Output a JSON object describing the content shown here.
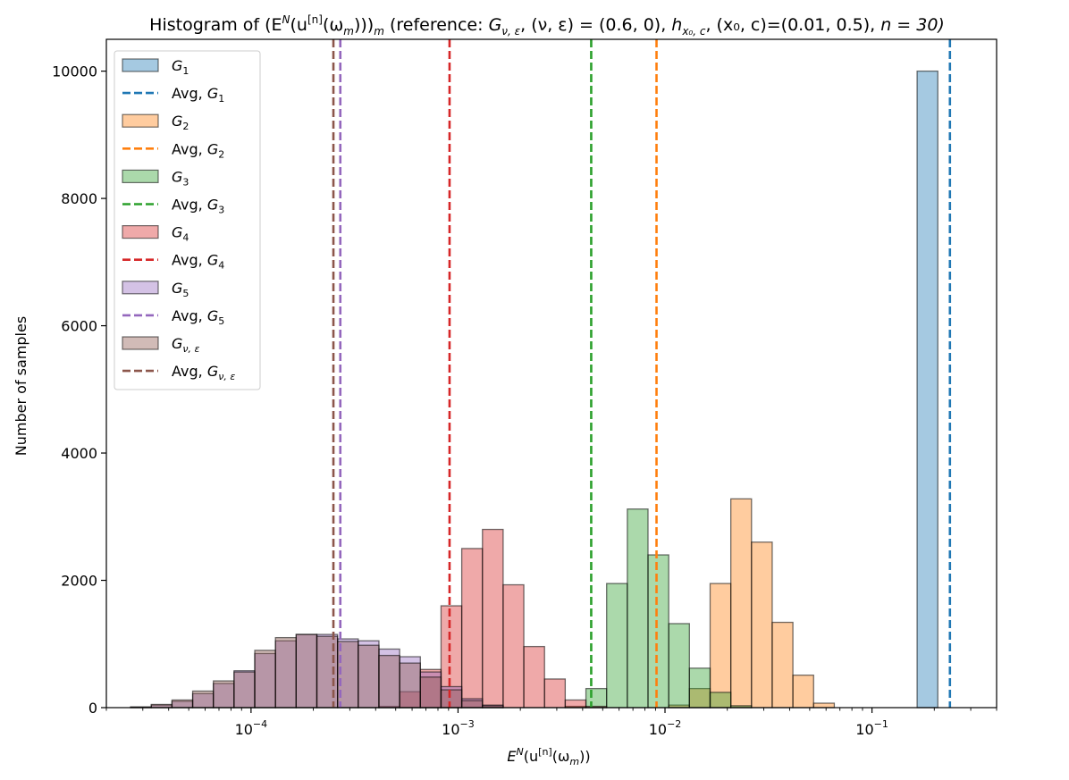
{
  "chart_data": {
    "type": "histogram",
    "title": "Histogram of (E^N(u^[n](ω_m)))_m (reference: G_{ν,ε}, (ν,ε)= (0.6, 0), h_{x₀,c}, (x₀,c)=(0.01, 0.5), n=30)",
    "title_parts": {
      "lead": "Histogram of (E",
      "sup_N": "N",
      "open": "(u",
      "sup_n": "[n]",
      "omega": "(ω",
      "sub_m1": "m",
      "close": ")))",
      "sub_m2": "m",
      "ref": " (reference: ",
      "G": "G",
      "sub_nueps": "ν, ε",
      "mid": ", (ν, ε) =  (0.6, 0), ",
      "h": "h",
      "sub_x0c": "x₀, c",
      "tail": ", (x₀, c)=(0.01, 0.5), ",
      "n_eq": "n = 30)"
    },
    "xlabel": "E^N(u^[n](ω_m))",
    "xlabel_parts": {
      "E": "E",
      "sup_N": "N",
      "open": "(u",
      "sup_n": "[n]",
      "omega": "(ω",
      "sub_m": "m",
      "close": "))"
    },
    "ylabel": "Number of samples",
    "xscale": "log",
    "xlim": [
      2e-05,
      0.4
    ],
    "ylim": [
      0,
      10500
    ],
    "xticks": [
      {
        "value": 0.0001,
        "base": "10",
        "exp": "−4"
      },
      {
        "value": 0.001,
        "base": "10",
        "exp": "−3"
      },
      {
        "value": 0.01,
        "base": "10",
        "exp": "−2"
      },
      {
        "value": 0.1,
        "base": "10",
        "exp": "−1"
      }
    ],
    "yticks": [
      {
        "value": 0,
        "label": "0"
      },
      {
        "value": 2000,
        "label": "2000"
      },
      {
        "value": 4000,
        "label": "4000"
      },
      {
        "value": 6000,
        "label": "6000"
      },
      {
        "value": 8000,
        "label": "8000"
      },
      {
        "value": 10000,
        "label": "10000"
      }
    ],
    "bin_edges_log10": [
      -4.582,
      -4.482,
      -4.382,
      -4.282,
      -4.182,
      -4.082,
      -3.982,
      -3.882,
      -3.782,
      -3.682,
      -3.582,
      -3.482,
      -3.382,
      -3.282,
      -3.182,
      -3.082,
      -2.982,
      -2.882,
      -2.782,
      -2.682,
      -2.582,
      -2.482,
      -2.382,
      -2.282,
      -2.182,
      -2.082,
      -1.982,
      -1.882,
      -1.782,
      -1.682,
      -1.582,
      -1.482,
      -1.382,
      -1.282,
      -1.182,
      -1.082,
      -0.982,
      -0.882,
      -0.782,
      -0.682,
      -0.582
    ],
    "legend_position": "upper-left",
    "series": [
      {
        "name": "G1",
        "base": "G",
        "sub": "1",
        "avg_label": "Avg, ",
        "color": "#1f77b4",
        "average": 0.238,
        "counts": [
          0,
          0,
          0,
          0,
          0,
          0,
          0,
          0,
          0,
          0,
          0,
          0,
          0,
          0,
          0,
          0,
          0,
          0,
          0,
          0,
          0,
          0,
          0,
          0,
          0,
          0,
          0,
          0,
          0,
          0,
          0,
          0,
          0,
          0,
          0,
          0,
          0,
          0,
          10000,
          0
        ]
      },
      {
        "name": "G2",
        "base": "G",
        "sub": "2",
        "avg_label": "Avg, ",
        "color": "#ff7f0e",
        "average": 0.0091,
        "counts": [
          0,
          0,
          0,
          0,
          0,
          0,
          0,
          0,
          0,
          0,
          0,
          0,
          0,
          0,
          0,
          0,
          0,
          0,
          0,
          0,
          0,
          0,
          0,
          0,
          0,
          0,
          40,
          300,
          1950,
          3280,
          2600,
          1340,
          510,
          70,
          0,
          0,
          0,
          0,
          0,
          0
        ]
      },
      {
        "name": "G3",
        "base": "G",
        "sub": "3",
        "avg_label": "Avg, ",
        "color": "#2ca02c",
        "average": 0.0044,
        "counts": [
          0,
          0,
          0,
          0,
          0,
          0,
          0,
          0,
          0,
          0,
          0,
          0,
          0,
          0,
          0,
          0,
          0,
          0,
          0,
          0,
          0,
          20,
          300,
          1950,
          3120,
          2400,
          1320,
          620,
          240,
          30,
          0,
          0,
          0,
          0,
          0,
          0,
          0,
          0,
          0,
          0
        ]
      },
      {
        "name": "G4",
        "base": "G",
        "sub": "4",
        "avg_label": "Avg, ",
        "color": "#d62728",
        "average": 0.00091,
        "counts": [
          0,
          0,
          0,
          0,
          0,
          0,
          0,
          0,
          0,
          0,
          0,
          0,
          20,
          250,
          600,
          1600,
          2500,
          2800,
          1930,
          960,
          450,
          120,
          20,
          0,
          0,
          0,
          0,
          0,
          0,
          0,
          0,
          0,
          0,
          0,
          0,
          0,
          0,
          0,
          0,
          0
        ]
      },
      {
        "name": "G5",
        "base": "G",
        "sub": "5",
        "avg_label": "Avg, ",
        "color": "#9467bd",
        "average": 0.00027,
        "counts": [
          10,
          40,
          100,
          220,
          380,
          580,
          850,
          1050,
          1150,
          1150,
          1080,
          1050,
          920,
          800,
          560,
          330,
          140,
          40,
          0,
          0,
          0,
          0,
          0,
          0,
          0,
          0,
          0,
          0,
          0,
          0,
          0,
          0,
          0,
          0,
          0,
          0,
          0,
          0,
          0,
          0
        ]
      },
      {
        "name": "G_{ν,ε}",
        "base": "G",
        "sub": "ν, ε",
        "avg_label": "Avg, ",
        "color": "#8c564b",
        "average": 0.00025,
        "counts": [
          10,
          50,
          120,
          260,
          420,
          560,
          900,
          1100,
          1150,
          1120,
          1040,
          980,
          820,
          700,
          480,
          280,
          110,
          30,
          0,
          0,
          0,
          0,
          0,
          0,
          0,
          0,
          0,
          0,
          0,
          0,
          0,
          0,
          0,
          0,
          0,
          0,
          0,
          0,
          0,
          0
        ]
      }
    ]
  }
}
